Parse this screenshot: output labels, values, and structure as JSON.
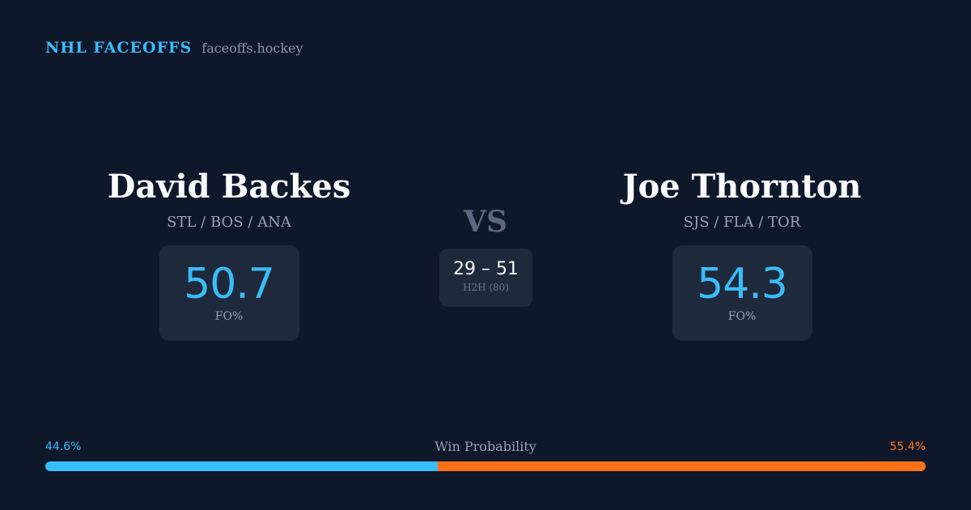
{
  "brand": {
    "title": "NHL FACEOFFS",
    "site": "faceoffs.hockey"
  },
  "player_left": {
    "name": "David Backes",
    "teams": "STL / BOS / ANA",
    "stat_value": "50.7",
    "stat_label": "FO%"
  },
  "player_right": {
    "name": "Joe Thornton",
    "teams": "SJS / FLA / TOR",
    "stat_value": "54.3",
    "stat_label": "FO%"
  },
  "versus": {
    "label": "VS",
    "h2h_score": "29 – 51",
    "h2h_label": "H2H (80)"
  },
  "win_probability": {
    "title": "Win Probability",
    "left_label": "44.6%",
    "right_label": "55.4%",
    "left_fraction": 0.446,
    "right_fraction": 0.554,
    "left_color": "#38bdf8",
    "right_color": "#f97316"
  }
}
